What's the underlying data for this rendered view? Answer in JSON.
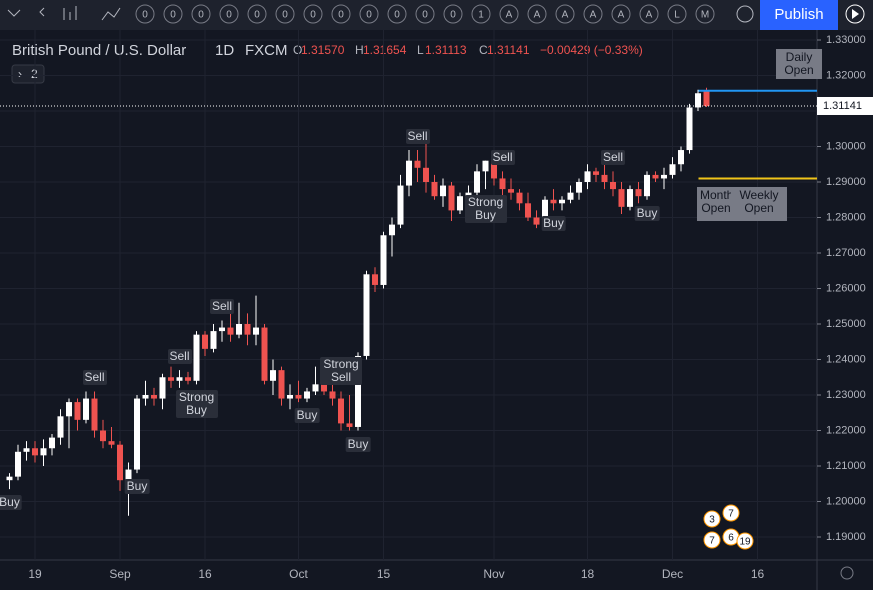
{
  "toolbar": {
    "publish": "Publish",
    "badges": [
      "0",
      "0",
      "0",
      "0",
      "0",
      "0",
      "0",
      "0",
      "0",
      "0",
      "0",
      "0",
      "1",
      "A",
      "A",
      "A",
      "A",
      "A",
      "A",
      "L",
      "M"
    ]
  },
  "chart_data": {
    "type": "candlestick",
    "title": "British Pound / U.S. Dollar",
    "interval": "1D",
    "source": "FXCM",
    "quote": [
      {
        "key": "O",
        "value": "1.31570"
      },
      {
        "key": "H",
        "value": "1.31654"
      },
      {
        "key": "L",
        "value": "1.31113"
      },
      {
        "key": "C",
        "value": "1.31141"
      }
    ],
    "change": "−0.00429 (−0.33%)",
    "studies_count": "2",
    "categories": [
      null,
      null,
      null,
      "19",
      null,
      null,
      null,
      null,
      null,
      null,
      null,
      null,
      null,
      "Sep",
      null,
      null,
      null,
      null,
      null,
      null,
      null,
      null,
      null,
      "16",
      null,
      null,
      null,
      null,
      null,
      null,
      null,
      null,
      null,
      null,
      "Oct",
      null,
      null,
      null,
      null,
      null,
      null,
      null,
      null,
      null,
      "15",
      null,
      null,
      null,
      null,
      null,
      null,
      null,
      null,
      null,
      null,
      null,
      null,
      "Nov",
      null,
      null,
      null,
      null,
      null,
      null,
      null,
      null,
      null,
      null,
      "18",
      null,
      null,
      null,
      null,
      null,
      null,
      null,
      null,
      null,
      "Dec",
      null,
      null,
      null,
      null,
      null,
      null,
      null,
      null,
      null,
      "16"
    ],
    "ohlc": [
      [
        1.206,
        1.208,
        1.2035,
        1.207
      ],
      [
        1.207,
        1.216,
        1.206,
        1.214
      ],
      [
        1.214,
        1.217,
        1.2115,
        1.215
      ],
      [
        1.215,
        1.217,
        1.211,
        1.213
      ],
      [
        1.213,
        1.2175,
        1.21,
        1.215
      ],
      [
        1.215,
        1.219,
        1.213,
        1.218
      ],
      [
        1.218,
        1.226,
        1.216,
        1.224
      ],
      [
        1.224,
        1.229,
        1.215,
        1.228
      ],
      [
        1.228,
        1.229,
        1.22,
        1.223
      ],
      [
        1.223,
        1.231,
        1.222,
        1.229
      ],
      [
        1.229,
        1.231,
        1.218,
        1.22
      ],
      [
        1.22,
        1.223,
        1.215,
        1.217
      ],
      [
        1.217,
        1.221,
        1.215,
        1.216
      ],
      [
        1.216,
        1.217,
        1.203,
        1.206
      ],
      [
        1.206,
        1.211,
        1.196,
        1.209
      ],
      [
        1.209,
        1.23,
        1.208,
        1.229
      ],
      [
        1.229,
        1.234,
        1.227,
        1.23
      ],
      [
        1.23,
        1.232,
        1.227,
        1.229
      ],
      [
        1.229,
        1.236,
        1.226,
        1.235
      ],
      [
        1.235,
        1.238,
        1.232,
        1.234
      ],
      [
        1.234,
        1.237,
        1.232,
        1.235
      ],
      [
        1.235,
        1.2365,
        1.233,
        1.234
      ],
      [
        1.234,
        1.248,
        1.233,
        1.247
      ],
      [
        1.247,
        1.248,
        1.241,
        1.243
      ],
      [
        1.243,
        1.25,
        1.242,
        1.248
      ],
      [
        1.248,
        1.251,
        1.245,
        1.249
      ],
      [
        1.249,
        1.253,
        1.245,
        1.247
      ],
      [
        1.247,
        1.256,
        1.246,
        1.25
      ],
      [
        1.25,
        1.253,
        1.244,
        1.247
      ],
      [
        1.247,
        1.258,
        1.244,
        1.249
      ],
      [
        1.249,
        1.25,
        1.233,
        1.234
      ],
      [
        1.234,
        1.24,
        1.23,
        1.237
      ],
      [
        1.237,
        1.238,
        1.227,
        1.229
      ],
      [
        1.229,
        1.233,
        1.226,
        1.23
      ],
      [
        1.23,
        1.234,
        1.228,
        1.229
      ],
      [
        1.229,
        1.232,
        1.228,
        1.231
      ],
      [
        1.231,
        1.238,
        1.23,
        1.233
      ],
      [
        1.233,
        1.235,
        1.23,
        1.231
      ],
      [
        1.231,
        1.234,
        1.227,
        1.229
      ],
      [
        1.229,
        1.231,
        1.22,
        1.222
      ],
      [
        1.222,
        1.23,
        1.22,
        1.221
      ],
      [
        1.221,
        1.242,
        1.22,
        1.241
      ],
      [
        1.241,
        1.265,
        1.24,
        1.264
      ],
      [
        1.264,
        1.266,
        1.259,
        1.261
      ],
      [
        1.261,
        1.276,
        1.26,
        1.275
      ],
      [
        1.275,
        1.28,
        1.269,
        1.278
      ],
      [
        1.278,
        1.292,
        1.277,
        1.289
      ],
      [
        1.289,
        1.299,
        1.286,
        1.296
      ],
      [
        1.296,
        1.299,
        1.29,
        1.294
      ],
      [
        1.294,
        1.301,
        1.287,
        1.29
      ],
      [
        1.29,
        1.292,
        1.285,
        1.286
      ],
      [
        1.286,
        1.291,
        1.283,
        1.289
      ],
      [
        1.289,
        1.29,
        1.279,
        1.282
      ],
      [
        1.282,
        1.287,
        1.281,
        1.286
      ],
      [
        1.286,
        1.289,
        1.282,
        1.287
      ],
      [
        1.287,
        1.295,
        1.286,
        1.293
      ],
      [
        1.293,
        1.296,
        1.288,
        1.296
      ],
      [
        1.296,
        1.298,
        1.289,
        1.291
      ],
      [
        1.291,
        1.293,
        1.286,
        1.288
      ],
      [
        1.288,
        1.291,
        1.285,
        1.287
      ],
      [
        1.287,
        1.288,
        1.282,
        1.284
      ],
      [
        1.284,
        1.287,
        1.279,
        1.28
      ],
      [
        1.28,
        1.282,
        1.277,
        1.278
      ],
      [
        1.278,
        1.286,
        1.277,
        1.285
      ],
      [
        1.285,
        1.288,
        1.282,
        1.284
      ],
      [
        1.284,
        1.286,
        1.282,
        1.285
      ],
      [
        1.285,
        1.289,
        1.284,
        1.287
      ],
      [
        1.287,
        1.291,
        1.285,
        1.29
      ],
      [
        1.29,
        1.295,
        1.288,
        1.293
      ],
      [
        1.293,
        1.294,
        1.29,
        1.292
      ],
      [
        1.292,
        1.295,
        1.288,
        1.29
      ],
      [
        1.29,
        1.293,
        1.286,
        1.288
      ],
      [
        1.288,
        1.29,
        1.281,
        1.283
      ],
      [
        1.283,
        1.289,
        1.282,
        1.288
      ],
      [
        1.288,
        1.29,
        1.284,
        1.286
      ],
      [
        1.286,
        1.293,
        1.285,
        1.292
      ],
      [
        1.292,
        1.293,
        1.29,
        1.291
      ],
      [
        1.291,
        1.294,
        1.288,
        1.292
      ],
      [
        1.292,
        1.297,
        1.291,
        1.295
      ],
      [
        1.295,
        1.3,
        1.293,
        1.299
      ],
      [
        1.299,
        1.312,
        1.298,
        1.311
      ],
      [
        1.311,
        1.316,
        1.31,
        1.315
      ],
      [
        1.3157,
        1.31654,
        1.31113,
        1.31141
      ],
      null,
      null,
      null,
      null,
      null,
      null
    ],
    "up_color": "#ffffff",
    "down_color": "#ef5350",
    "ylim": [
      1.19,
      1.33
    ],
    "yticks": [
      {
        "value": 1.33,
        "label": "1.33000"
      },
      {
        "value": 1.32,
        "label": "1.32000"
      },
      {
        "value": 1.31,
        "label": "1.31000"
      },
      {
        "value": 1.3,
        "label": "1.30000"
      },
      {
        "value": 1.29,
        "label": "1.29000"
      },
      {
        "value": 1.28,
        "label": "1.28000"
      },
      {
        "value": 1.27,
        "label": "1.27000"
      },
      {
        "value": 1.26,
        "label": "1.26000"
      },
      {
        "value": 1.25,
        "label": "1.25000"
      },
      {
        "value": 1.24,
        "label": "1.24000"
      },
      {
        "value": 1.23,
        "label": "1.23000"
      },
      {
        "value": 1.22,
        "label": "1.22000"
      },
      {
        "value": 1.21,
        "label": "1.21000"
      },
      {
        "value": 1.2,
        "label": "1.20000"
      },
      {
        "value": 1.19,
        "label": "1.19000"
      }
    ],
    "last_price": {
      "value": 1.31141,
      "label": "1.31141"
    },
    "levels": [
      {
        "name": "Daily Open",
        "value": 1.3157,
        "color": "#2196f3"
      },
      {
        "name": "Monthly Open",
        "value": 1.291,
        "color": "#f0c419"
      },
      {
        "name": "Weekly Open",
        "value": 1.291,
        "color": "#f0c419"
      }
    ],
    "signals": [
      {
        "label": "Buy",
        "at": 0
      },
      {
        "label": "Sell",
        "at": 10
      },
      {
        "label": "Buy",
        "at": 15
      },
      {
        "label": "Sell",
        "at": 20
      },
      {
        "label": "Strong Buy",
        "at": 22
      },
      {
        "label": "Sell",
        "at": 25
      },
      {
        "label": "Buy",
        "at": 35
      },
      {
        "label": "Strong Sell",
        "at": 39
      },
      {
        "label": "Buy",
        "at": 41
      },
      {
        "label": "Sell",
        "at": 48
      },
      {
        "label": "Strong Buy",
        "at": 56
      },
      {
        "label": "Sell",
        "at": 58
      },
      {
        "label": "Buy",
        "at": 64
      },
      {
        "label": "Sell",
        "at": 71
      },
      {
        "label": "Buy",
        "at": 75
      }
    ],
    "events": [
      "3",
      "7",
      "7",
      "6",
      "19"
    ]
  }
}
